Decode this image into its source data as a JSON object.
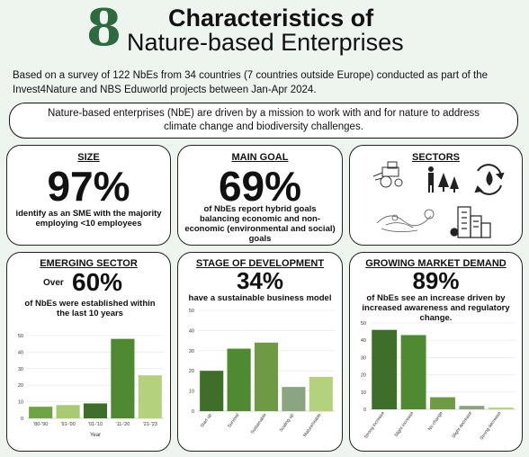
{
  "header": {
    "logo_number": "8",
    "title_line1": "Characteristics of",
    "title_line2": "Nature-based Enterprises"
  },
  "intro": "Based on a survey of 122 NbEs from 34 countries (7 countries outside Europe) conducted as part of the Invest4Nature and NBS Eduworld projects between Jan-Apr 2024.",
  "mission": "Nature-based enterprises (NbE) are driven by a mission to work with and for nature to address climate change and biodiversity challenges.",
  "size": {
    "title": "SIZE",
    "stat": "97%",
    "desc": "identify as an SME with the majority employing <10 employees"
  },
  "main_goal": {
    "title": "MAIN GOAL",
    "stat": "69%",
    "desc": "of NbEs report hybrid goals balancing economic and non-economic (environmental and social) goals"
  },
  "sectors": {
    "title": "SECTORS",
    "icons": [
      "tractor-icon",
      "farmer-trees-icon",
      "water-cycle-icon",
      "floral-sketch-icon",
      "city-buildings-icon"
    ]
  },
  "emerging_sector": {
    "title": "EMERGING SECTOR",
    "stat_prefix": "Over",
    "stat": "60%",
    "desc": "of NbEs were established within the last 10 years"
  },
  "stage": {
    "title": "STAGE OF DEVELOPMENT",
    "stat": "34%",
    "desc": "have a sustainable business model"
  },
  "market": {
    "title": "GROWING MARKET DEMAND",
    "stat": "89%",
    "desc": "of NbEs see an increase driven by increased awareness and regulatory change."
  },
  "colors": {
    "dark_green": "#3e6e2a",
    "mid_green": "#4f8a32",
    "light_green": "#9bc26a",
    "pale_green": "#b4d27e",
    "gray_green": "#8aa580",
    "logo_green": "#2d6a3e",
    "background": "#eef4ee"
  },
  "chart_data": [
    {
      "type": "bar",
      "categories": [
        "'80-'90",
        "'91-'00",
        "'01-'10",
        "'11-'20",
        "'21-'23"
      ],
      "values": [
        7,
        8,
        9,
        48,
        26
      ],
      "xlabel": "Year",
      "ylabel": "",
      "ylim": [
        0,
        50
      ],
      "yticks": [
        0,
        10,
        20,
        30,
        40,
        50
      ],
      "bar_colors": [
        "#6ea446",
        "#a9ca72",
        "#3e6e2a",
        "#4f8a32",
        "#b4d27e"
      ]
    },
    {
      "type": "bar",
      "categories": [
        "Start up",
        "Survival",
        "Sustainable",
        "Scaling up",
        "Mature/stable"
      ],
      "values": [
        20,
        31,
        34,
        12,
        17
      ],
      "xlabel": "",
      "ylabel": "",
      "ylim": [
        0,
        50
      ],
      "yticks": [
        0,
        10,
        20,
        30,
        40,
        50
      ],
      "bar_colors": [
        "#3e6e2a",
        "#4f8a32",
        "#6e9a45",
        "#8aa580",
        "#b4d27e"
      ]
    },
    {
      "type": "bar",
      "categories": [
        "Strong increase",
        "Slight increase",
        "No change",
        "Slight decrease",
        "Strong decrease"
      ],
      "values": [
        46,
        43,
        7,
        2,
        1
      ],
      "xlabel": "",
      "ylabel": "",
      "ylim": [
        0,
        50
      ],
      "yticks": [
        0,
        10,
        20,
        30,
        40,
        50
      ],
      "bar_colors": [
        "#3e6e2a",
        "#4f8a32",
        "#6e9a45",
        "#8aa580",
        "#b4d27e"
      ]
    }
  ]
}
